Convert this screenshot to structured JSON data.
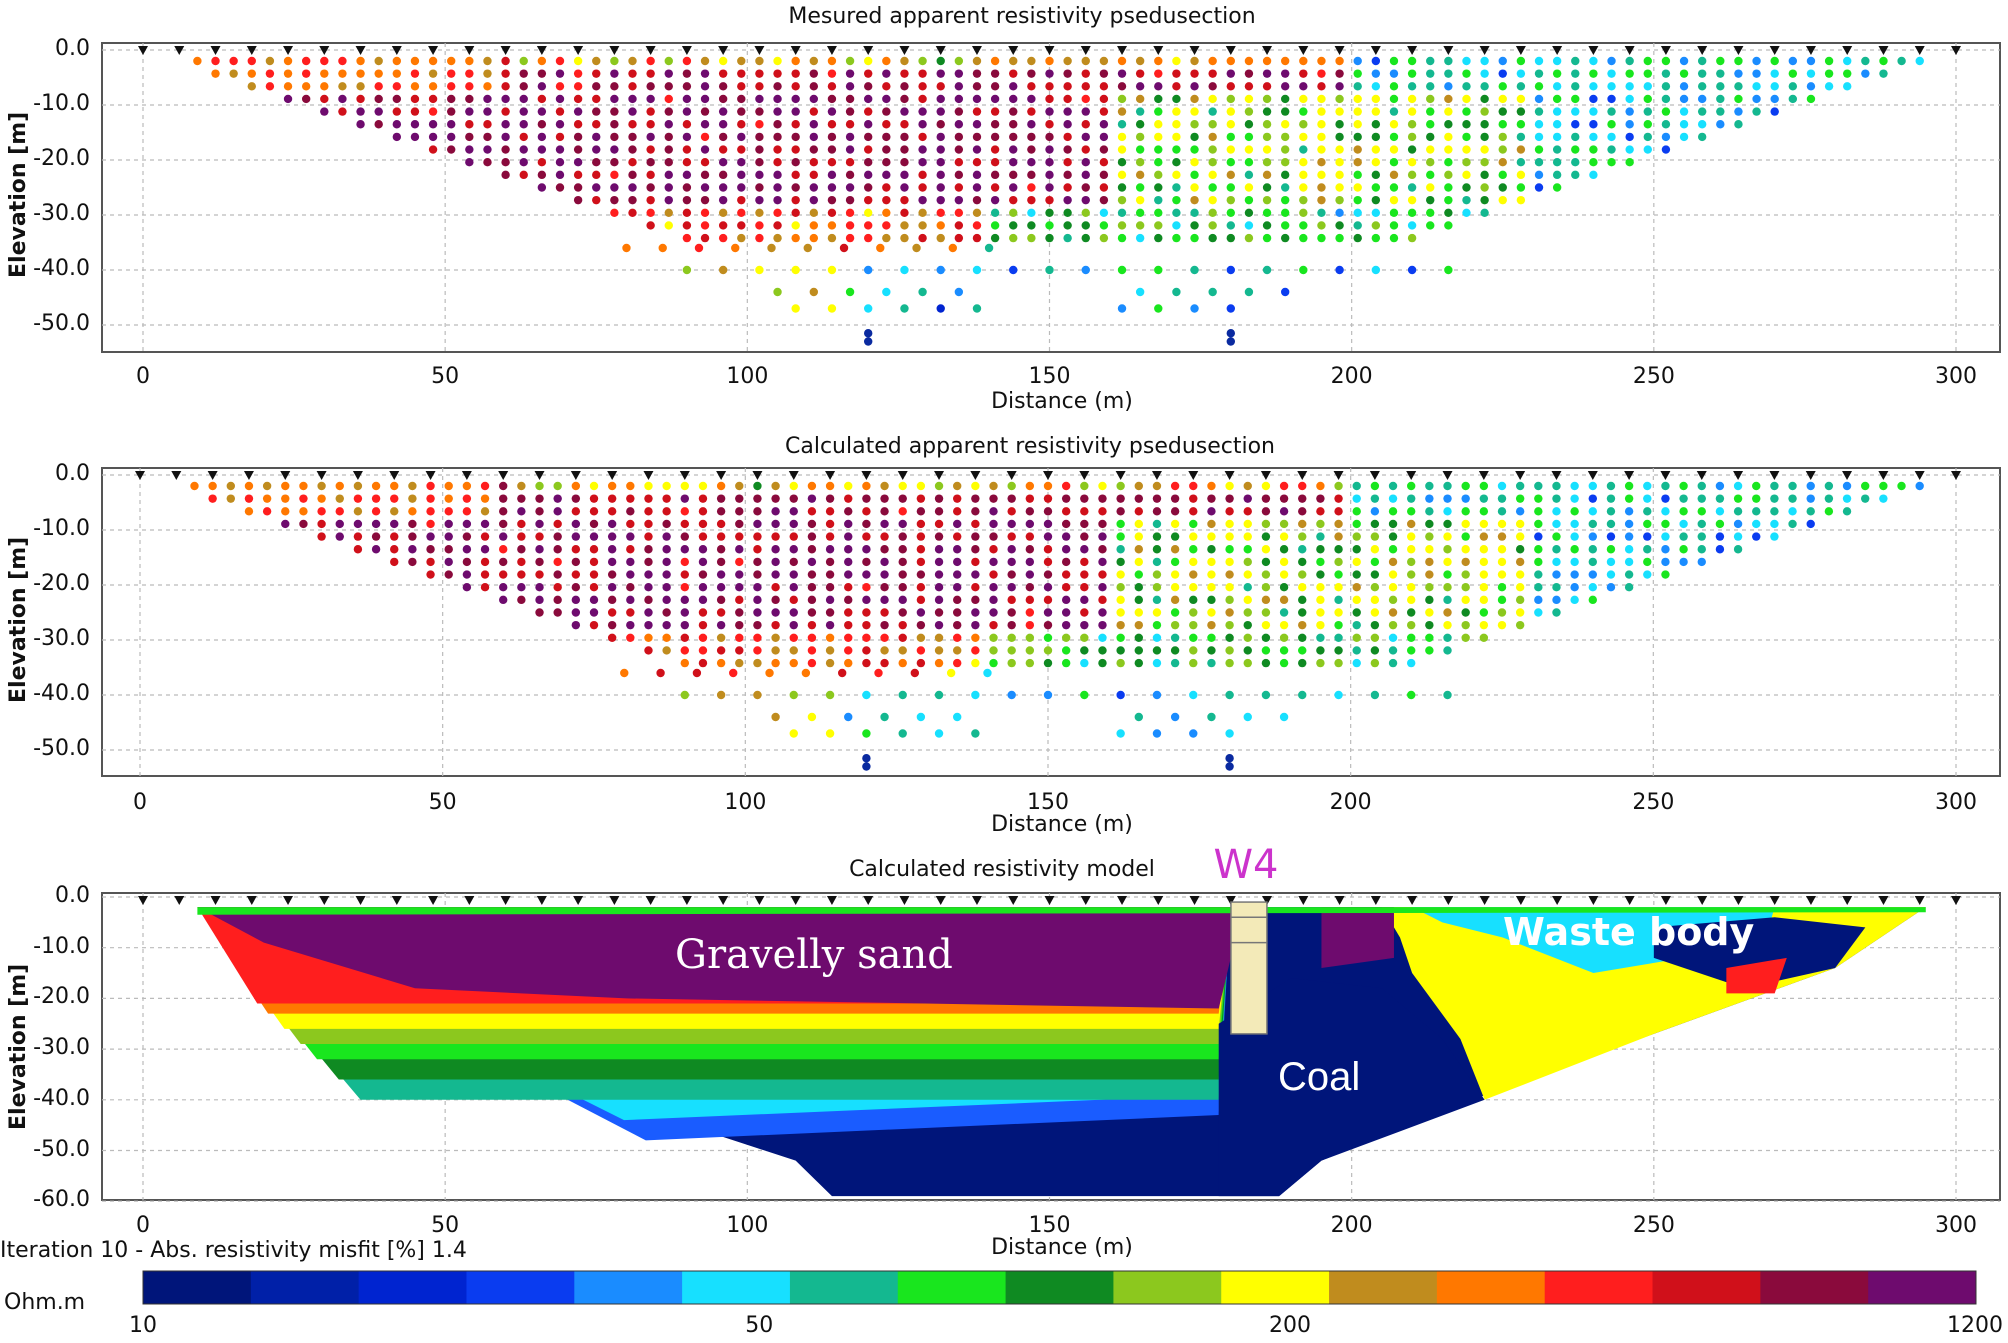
{
  "chart_data": [
    {
      "type": "scatter",
      "title": "Mesured apparent resistivity psedusection",
      "xlabel": "Distance (m)",
      "ylabel": "Elevation [m]",
      "xlim": [
        0,
        300
      ],
      "ylim": [
        -55,
        0
      ],
      "xticks": [
        "0",
        "50",
        "100",
        "150",
        "200",
        "250",
        "300"
      ],
      "yticks": [
        "0.0",
        "-10.0",
        "-20.0",
        "-30.0",
        "-40.0",
        "-50.0"
      ],
      "grid": true,
      "electrode_spacing": 6,
      "description": "apparent resistivity pseudosection, values 10-1200 Ohm.m"
    },
    {
      "type": "scatter",
      "title": "Calculated apparent resistivity psedusection",
      "xlabel": "Distance (m)",
      "ylabel": "Elevation [m]",
      "xlim": [
        0,
        300
      ],
      "ylim": [
        -55,
        0
      ],
      "xticks": [
        "0",
        "50",
        "100",
        "150",
        "200",
        "250",
        "300"
      ],
      "yticks": [
        "0.0",
        "-10.0",
        "-20.0",
        "-30.0",
        "-40.0",
        "-50.0"
      ],
      "grid": true
    },
    {
      "type": "heatmap",
      "title": "Calculated resistivity model",
      "xlabel": "Distance (m)",
      "ylabel": "Elevation [m]",
      "xlim": [
        0,
        300
      ],
      "ylim": [
        -60,
        0
      ],
      "xticks": [
        "0",
        "50",
        "100",
        "150",
        "200",
        "250",
        "300"
      ],
      "yticks": [
        "0.0",
        "-10.0",
        "-20.0",
        "-30.0",
        "-40.0",
        "-50.0",
        "-60.0"
      ],
      "grid": true,
      "annotations": [
        "W4",
        "Gravelly sand",
        "Coal",
        "Waste body"
      ],
      "borehole_x": 183
    }
  ],
  "labels": {
    "title1": "Mesured apparent resistivity psedusection",
    "title2": "Calculated apparent resistivity psedusection",
    "title3": "Calculated resistivity model",
    "xlabel": "Distance (m)",
    "ylabel": "Elevation [m]",
    "w4": "W4",
    "gravelly": "Gravelly sand",
    "coal": "Coal",
    "waste": "Waste body",
    "iteration": "Iteration 10 - Abs. resistivity misfit [%] 1.4",
    "unit": "Ohm.m",
    "xticks": [
      "0",
      "50",
      "100",
      "150",
      "200",
      "250",
      "300"
    ],
    "yticks_p": [
      "0.0",
      "-10.0",
      "-20.0",
      "-30.0",
      "-40.0",
      "-50.0"
    ],
    "yticks_m": [
      "0.0",
      "-10.0",
      "-20.0",
      "-30.0",
      "-40.0",
      "-50.0",
      "-60.0"
    ]
  },
  "colorbar": {
    "ticks": [
      "10",
      "50",
      "200",
      "1200"
    ],
    "tick_values": [
      10,
      50,
      200,
      1200
    ],
    "colors": [
      "#00157a",
      "#0020a8",
      "#0024d0",
      "#0a3cf0",
      "#1a8cff",
      "#17e0ff",
      "#14b890",
      "#19e61e",
      "#0f8a22",
      "#8cc81e",
      "#ffff00",
      "#c08c1e",
      "#ff7800",
      "#ff1e1e",
      "#d0101a",
      "#8a0a3c",
      "#6e0b6e"
    ]
  }
}
